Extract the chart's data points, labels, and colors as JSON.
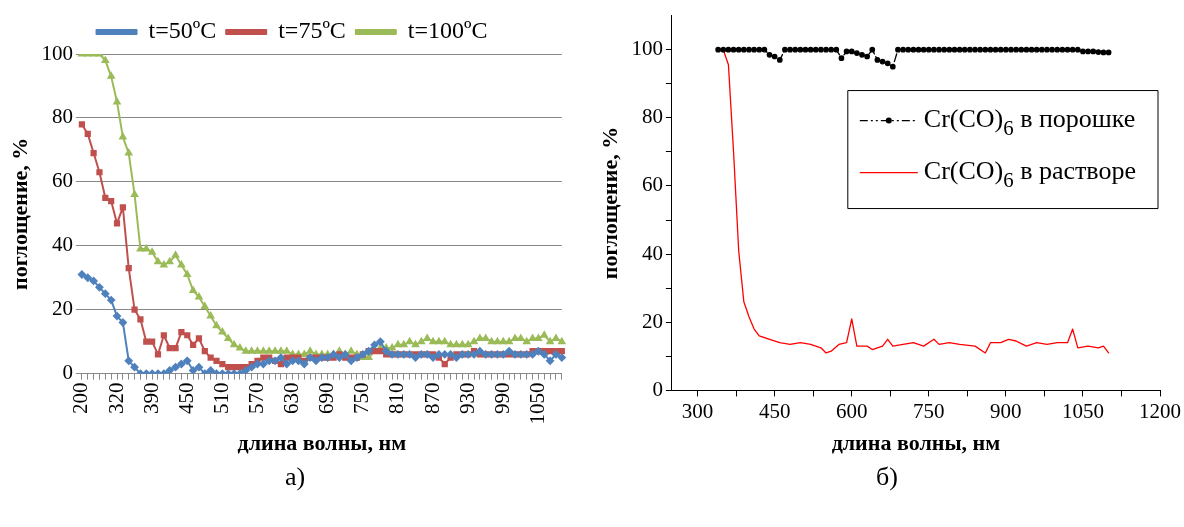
{
  "chart_data": [
    {
      "type": "line",
      "xlabel": "длина волны, нм",
      "ylabel": "поглощение, %",
      "annotations": [
        "а)"
      ],
      "categories": [
        "200",
        null,
        null,
        null,
        null,
        null,
        "320",
        null,
        null,
        null,
        null,
        null,
        "390",
        null,
        null,
        null,
        null,
        null,
        "450",
        null,
        null,
        null,
        null,
        null,
        "510",
        null,
        null,
        null,
        null,
        null,
        "570",
        null,
        null,
        null,
        null,
        null,
        "630",
        null,
        null,
        null,
        null,
        null,
        "690",
        null,
        null,
        null,
        null,
        null,
        "750",
        null,
        null,
        null,
        null,
        null,
        "810",
        null,
        null,
        null,
        null,
        null,
        "870",
        null,
        null,
        null,
        null,
        null,
        "930",
        null,
        null,
        null,
        null,
        null,
        "990",
        null,
        null,
        null,
        null,
        null,
        "1050",
        null,
        null,
        null,
        null
      ],
      "series": [
        {
          "name": "t=50ºC",
          "color": "#4f81bd",
          "marker": "diamond",
          "values": [
            31,
            30,
            29,
            27,
            25,
            23,
            18,
            16,
            4,
            2,
            0,
            0,
            0,
            0,
            0,
            1,
            2,
            3,
            4,
            1,
            2,
            0,
            1,
            0,
            0,
            0,
            0,
            0,
            1,
            2,
            3,
            3,
            4,
            4,
            5,
            3,
            4,
            4,
            3,
            5,
            4,
            5,
            5,
            6,
            5,
            6,
            4,
            5,
            6,
            7,
            9,
            10,
            7,
            6,
            6,
            6,
            6,
            5,
            6,
            6,
            5,
            6,
            6,
            6,
            5,
            6,
            6,
            6,
            7,
            6,
            6,
            6,
            6,
            7,
            6,
            6,
            6,
            6,
            7,
            6,
            4,
            6,
            5
          ]
        },
        {
          "name": "t=75ºC",
          "color": "#c0504d",
          "marker": "square",
          "values": [
            78,
            75,
            69,
            63,
            55,
            54,
            47,
            52,
            33,
            20,
            17,
            10,
            10,
            6,
            12,
            8,
            8,
            13,
            12,
            9,
            11,
            7,
            5,
            4,
            3,
            2,
            2,
            2,
            2,
            3,
            4,
            5,
            5,
            4,
            3,
            5,
            5,
            5,
            4,
            5,
            5,
            5,
            5,
            5,
            6,
            5,
            5,
            5,
            6,
            7,
            7,
            7,
            6,
            6,
            6,
            6,
            6,
            6,
            6,
            6,
            6,
            5,
            3,
            5,
            6,
            6,
            6,
            7,
            6,
            6,
            6,
            6,
            6,
            6,
            6,
            6,
            6,
            7,
            7,
            7,
            7,
            7,
            7
          ]
        },
        {
          "name": "t=100ºC",
          "color": "#9bbb59",
          "marker": "triangle",
          "values": [
            100,
            100,
            100,
            100,
            98,
            93,
            85,
            74,
            69,
            56,
            39,
            39,
            38,
            35,
            34,
            35,
            37,
            34,
            31,
            26,
            24,
            21,
            18,
            15,
            13,
            11,
            9,
            8,
            7,
            7,
            7,
            7,
            7,
            7,
            7,
            7,
            6,
            6,
            6,
            7,
            6,
            6,
            6,
            6,
            7,
            6,
            7,
            6,
            5,
            5,
            7,
            8,
            8,
            8,
            9,
            9,
            10,
            9,
            10,
            11,
            10,
            10,
            10,
            9,
            9,
            9,
            9,
            10,
            11,
            11,
            10,
            10,
            10,
            10,
            11,
            11,
            10,
            11,
            11,
            12,
            10,
            11,
            10
          ]
        }
      ],
      "ylim": [
        0,
        100
      ],
      "yticks": [
        0,
        20,
        40,
        60,
        80,
        100
      ],
      "grid": "y",
      "legend": "top"
    },
    {
      "type": "line",
      "xlabel": "длина волны, нм",
      "ylabel": "поглощение, %",
      "annotations": [
        "б)"
      ],
      "series": [
        {
          "name": "Cr(CO)$_{6}$ в порошке",
          "color": "#000000",
          "marker": "circle",
          "line_style": "dashed",
          "x": [
            340,
            350,
            360,
            370,
            380,
            390,
            400,
            410,
            420,
            430,
            440,
            450,
            460,
            470,
            480,
            490,
            500,
            510,
            520,
            530,
            540,
            550,
            560,
            570,
            580,
            590,
            600,
            610,
            620,
            630,
            640,
            650,
            660,
            670,
            680,
            690,
            700,
            710,
            720,
            730,
            740,
            750,
            760,
            770,
            780,
            790,
            800,
            810,
            820,
            830,
            840,
            850,
            860,
            870,
            880,
            890,
            900,
            910,
            920,
            930,
            940,
            950,
            960,
            970,
            980,
            990,
            1000,
            1010,
            1020,
            1030,
            1040,
            1050,
            1060,
            1070,
            1080,
            1090,
            1100
          ],
          "values": [
            100,
            100,
            100,
            100,
            100,
            100,
            100,
            100,
            100,
            100,
            98.5,
            98,
            97,
            100,
            100,
            100,
            100,
            100,
            100,
            100,
            100,
            100,
            100,
            100,
            97.5,
            99.5,
            99.5,
            99,
            98.5,
            98,
            100,
            97,
            96.5,
            96,
            95,
            100,
            100,
            100,
            100,
            100,
            100,
            100,
            100,
            100,
            100,
            100,
            100,
            100,
            100,
            100,
            100,
            100,
            100,
            100,
            100,
            100,
            100,
            100,
            100,
            100,
            100,
            100,
            100,
            100,
            100,
            100,
            100,
            100,
            100,
            100,
            100,
            99.5,
            99.5,
            99.5,
            99.3,
            99.2,
            99.2
          ]
        },
        {
          "name": "Cr(CO)$_{6}$ в растворе",
          "color": "#ff0000",
          "marker": "none",
          "line_style": "solid",
          "x": [
            340,
            350,
            360,
            370,
            380,
            390,
            400,
            410,
            420,
            440,
            460,
            480,
            500,
            520,
            540,
            550,
            560,
            575,
            590,
            600,
            610,
            630,
            640,
            660,
            670,
            680,
            700,
            720,
            740,
            760,
            770,
            790,
            810,
            840,
            860,
            870,
            890,
            905,
            920,
            940,
            960,
            980,
            1000,
            1020,
            1030,
            1040,
            1060,
            1080,
            1090,
            1100
          ],
          "values": [
            100,
            100,
            95.6,
            70,
            41,
            26,
            21.6,
            18,
            16,
            15,
            14,
            13.5,
            14,
            13.5,
            12.5,
            11,
            11.5,
            13.5,
            14,
            21,
            13,
            13,
            12,
            13,
            15,
            13,
            13.5,
            14,
            13,
            15,
            13.5,
            14,
            13.5,
            13,
            11,
            14,
            14,
            15,
            14.5,
            13,
            14,
            13.5,
            14,
            14,
            18,
            12.5,
            13,
            12.5,
            13,
            11
          ]
        }
      ],
      "xlim": [
        250,
        1200
      ],
      "xticks": [
        {
          "value": 300,
          "label": "300"
        },
        {
          "value": 375,
          "label": null
        },
        {
          "value": 450,
          "label": "450"
        },
        {
          "value": 525,
          "label": null
        },
        {
          "value": 600,
          "label": "600"
        },
        {
          "value": 675,
          "label": null
        },
        {
          "value": 750,
          "label": "750"
        },
        {
          "value": 825,
          "label": null
        },
        {
          "value": 900,
          "label": "900"
        },
        {
          "value": 975,
          "label": null
        },
        {
          "value": 1050,
          "label": "1050"
        },
        {
          "value": 1125,
          "label": null
        },
        {
          "value": 1200,
          "label": "1200"
        }
      ],
      "ylim": [
        0,
        110
      ],
      "yticks": [
        0,
        {
          "value": 10,
          "label": null
        },
        20,
        {
          "value": 30,
          "label": null
        },
        40,
        {
          "value": 50,
          "label": null
        },
        60,
        {
          "value": 70,
          "label": null
        },
        80,
        {
          "value": 90,
          "label": null
        },
        100
      ],
      "grid": false,
      "legend": "top right"
    }
  ]
}
